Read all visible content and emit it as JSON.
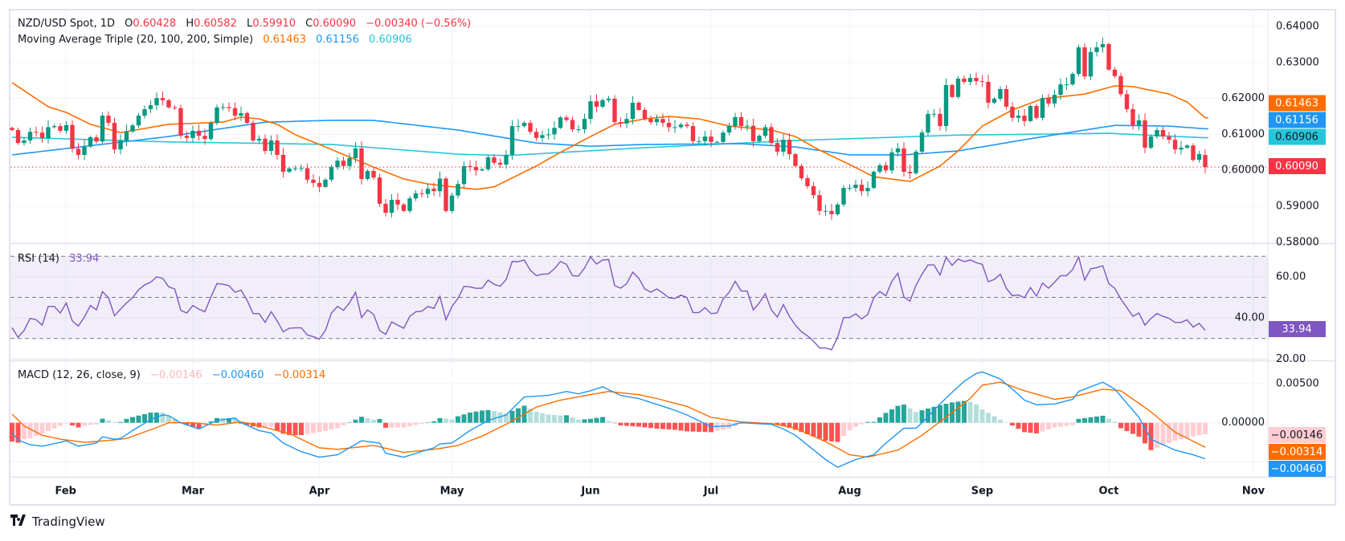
{
  "header": {
    "symbol": "NZD/USD Spot, 1D",
    "o_label": "O",
    "o": "0.60428",
    "h_label": "H",
    "h": "0.60582",
    "l_label": "L",
    "l": "0.59910",
    "c_label": "C",
    "c": "0.60090",
    "change": "−0.00340 (−0.56%)"
  },
  "ma_legend": {
    "title": "Moving Average Triple (20, 100, 200, Simple)",
    "v20": "0.61463",
    "v100": "0.61156",
    "v200": "0.60906"
  },
  "rsi_legend": {
    "title": "RSI (14)",
    "value": "33.94"
  },
  "macd_legend": {
    "title": "MACD (12, 26, close, 9)",
    "hist": "−0.00146",
    "macd": "−0.00460",
    "signal": "−0.00314"
  },
  "branding": {
    "name": "TradingView"
  },
  "colors": {
    "up": "#089981",
    "down": "#f23645",
    "sma20": "#ff6d00",
    "sma100": "#2196f3",
    "sma200": "#26c6da",
    "rsi": "#7e57c2",
    "macd": "#2196f3",
    "signal": "#ff6d00"
  },
  "chart_data": {
    "type": "candlestick",
    "title": "NZD/USD Spot, 1D",
    "last_bar": {
      "open": 0.60428,
      "high": 0.60582,
      "low": 0.5991,
      "close": 0.6009
    },
    "closes": [
      0.6112,
      0.6076,
      0.6083,
      0.6107,
      0.6105,
      0.609,
      0.612,
      0.6123,
      0.611,
      0.6126,
      0.606,
      0.6043,
      0.6066,
      0.6092,
      0.608,
      0.6152,
      0.6132,
      0.6058,
      0.6083,
      0.6108,
      0.6125,
      0.6152,
      0.617,
      0.6181,
      0.6201,
      0.6195,
      0.6175,
      0.6173,
      0.6096,
      0.609,
      0.611,
      0.6096,
      0.6087,
      0.6132,
      0.6175,
      0.6176,
      0.6173,
      0.6152,
      0.6159,
      0.6132,
      0.6083,
      0.6088,
      0.6054,
      0.6083,
      0.6043,
      0.5996,
      0.6005,
      0.6005,
      0.6006,
      0.5974,
      0.5965,
      0.5954,
      0.5974,
      0.6009,
      0.6027,
      0.6012,
      0.6034,
      0.6061,
      0.5976,
      0.5998,
      0.598,
      0.5907,
      0.5882,
      0.5918,
      0.5905,
      0.5887,
      0.5922,
      0.5936,
      0.5934,
      0.5949,
      0.5942,
      0.5977,
      0.5887,
      0.593,
      0.5962,
      0.6012,
      0.6009,
      0.6,
      0.6003,
      0.6036,
      0.6021,
      0.6016,
      0.6043,
      0.6123,
      0.6123,
      0.6132,
      0.6107,
      0.609,
      0.6098,
      0.61,
      0.6118,
      0.6147,
      0.614,
      0.6114,
      0.6114,
      0.6143,
      0.6192,
      0.6177,
      0.6195,
      0.6199,
      0.6134,
      0.613,
      0.6143,
      0.6188,
      0.6168,
      0.6143,
      0.6134,
      0.6143,
      0.6132,
      0.612,
      0.612,
      0.6127,
      0.6123,
      0.6081,
      0.6081,
      0.6094,
      0.6079,
      0.6079,
      0.6105,
      0.6123,
      0.6148,
      0.6123,
      0.6124,
      0.6081,
      0.6096,
      0.612,
      0.6076,
      0.6052,
      0.6085,
      0.6045,
      0.6012,
      0.5978,
      0.5956,
      0.5931,
      0.5887,
      0.5887,
      0.5878,
      0.5905,
      0.5951,
      0.5951,
      0.596,
      0.5942,
      0.5951,
      0.5996,
      0.6014,
      0.6,
      0.605,
      0.6061,
      0.5996,
      0.5992,
      0.6052,
      0.6105,
      0.6157,
      0.6157,
      0.6123,
      0.6237,
      0.6204,
      0.6255,
      0.6246,
      0.6257,
      0.6248,
      0.6246,
      0.6188,
      0.6199,
      0.6226,
      0.6177,
      0.6146,
      0.6152,
      0.6137,
      0.6179,
      0.6146,
      0.6201,
      0.6186,
      0.621,
      0.6239,
      0.6239,
      0.6268,
      0.6342,
      0.6261,
      0.6329,
      0.6342,
      0.6351,
      0.628,
      0.6262,
      0.6212,
      0.617,
      0.6125,
      0.6139,
      0.6063,
      0.6094,
      0.6112,
      0.6094,
      0.6085,
      0.6058,
      0.6063,
      0.6069,
      0.6029,
      0.6045,
      0.6009
    ],
    "sma20_keypoints": [
      [
        0,
        0.6244
      ],
      [
        6,
        0.6177
      ],
      [
        9,
        0.6161
      ],
      [
        13,
        0.6128
      ],
      [
        18,
        0.6105
      ],
      [
        26,
        0.6128
      ],
      [
        35,
        0.6134
      ],
      [
        38,
        0.6148
      ],
      [
        41,
        0.6143
      ],
      [
        44,
        0.6128
      ],
      [
        47,
        0.6099
      ],
      [
        51,
        0.6072
      ],
      [
        60,
        0.6009
      ],
      [
        65,
        0.5976
      ],
      [
        69,
        0.5962
      ],
      [
        77,
        0.5947
      ],
      [
        80,
        0.5954
      ],
      [
        87,
        0.6012
      ],
      [
        91,
        0.605
      ],
      [
        96,
        0.6094
      ],
      [
        100,
        0.6128
      ],
      [
        105,
        0.6143
      ],
      [
        109,
        0.615
      ],
      [
        114,
        0.6143
      ],
      [
        119,
        0.6123
      ],
      [
        126,
        0.6112
      ],
      [
        130,
        0.6094
      ],
      [
        134,
        0.6056
      ],
      [
        139,
        0.6016
      ],
      [
        143,
        0.5982
      ],
      [
        149,
        0.5969
      ],
      [
        154,
        0.6012
      ],
      [
        157,
        0.6054
      ],
      [
        161,
        0.6123
      ],
      [
        166,
        0.6168
      ],
      [
        171,
        0.6199
      ],
      [
        178,
        0.6212
      ],
      [
        183,
        0.6235
      ],
      [
        186,
        0.6233
      ],
      [
        192,
        0.6212
      ],
      [
        195,
        0.619
      ],
      [
        198,
        0.61463
      ]
    ],
    "sma100_keypoints": [
      [
        0,
        0.6043
      ],
      [
        26,
        0.6094
      ],
      [
        42,
        0.6134
      ],
      [
        53,
        0.6139
      ],
      [
        60,
        0.6139
      ],
      [
        74,
        0.6112
      ],
      [
        87,
        0.6076
      ],
      [
        96,
        0.6067
      ],
      [
        105,
        0.6072
      ],
      [
        121,
        0.6074
      ],
      [
        130,
        0.6065
      ],
      [
        139,
        0.6043
      ],
      [
        148,
        0.6043
      ],
      [
        157,
        0.6054
      ],
      [
        169,
        0.6088
      ],
      [
        178,
        0.6112
      ],
      [
        183,
        0.6125
      ],
      [
        192,
        0.6123
      ],
      [
        198,
        0.61156
      ]
    ],
    "sma200_keypoints": [
      [
        0,
        0.6092
      ],
      [
        26,
        0.6079
      ],
      [
        53,
        0.6072
      ],
      [
        74,
        0.6045
      ],
      [
        82,
        0.6041
      ],
      [
        105,
        0.6063
      ],
      [
        130,
        0.6083
      ],
      [
        157,
        0.6098
      ],
      [
        182,
        0.6103
      ],
      [
        198,
        0.60906
      ]
    ],
    "rsi": [
      35.2,
      30.6,
      33.9,
      39.8,
      39.1,
      36.5,
      45.6,
      45.6,
      42.4,
      47.3,
      38.5,
      36.1,
      40.4,
      46.0,
      43.9,
      52.8,
      49.9,
      41.1,
      44.3,
      47.3,
      49.9,
      53.7,
      56.1,
      57.4,
      60.0,
      59.3,
      55.1,
      54.1,
      43.7,
      42.4,
      46.0,
      44.3,
      43.0,
      50.2,
      56.7,
      56.4,
      55.7,
      52.5,
      53.5,
      48.6,
      42.1,
      42.1,
      37.8,
      43.0,
      38.5,
      33.3,
      35.0,
      35.2,
      35.2,
      31.7,
      30.9,
      29.7,
      33.9,
      42.4,
      45.6,
      43.7,
      47.3,
      52.5,
      40.2,
      43.9,
      41.7,
      33.9,
      32.0,
      38.1,
      36.5,
      35.0,
      40.8,
      43.0,
      43.3,
      45.6,
      44.7,
      50.5,
      39.1,
      45.6,
      49.5,
      55.4,
      55.1,
      54.4,
      54.5,
      58.4,
      56.4,
      55.4,
      58.7,
      67.5,
      67.4,
      68.2,
      63.2,
      60.6,
      61.3,
      61.4,
      63.9,
      67.5,
      66.1,
      60.6,
      60.4,
      64.3,
      69.7,
      66.2,
      68.2,
      68.4,
      55.7,
      54.5,
      56.7,
      62.3,
      59.3,
      54.1,
      52.5,
      54.1,
      52.1,
      49.8,
      49.5,
      51.1,
      49.9,
      42.6,
      42.6,
      45.0,
      42.1,
      42.4,
      49.2,
      52.5,
      57.8,
      53.1,
      53.1,
      43.9,
      47.3,
      51.8,
      43.9,
      40.4,
      46.5,
      40.8,
      36.5,
      33.3,
      31.3,
      28.7,
      25.4,
      25.4,
      24.5,
      30.6,
      40.2,
      40.2,
      42.0,
      39.5,
      41.7,
      49.9,
      52.8,
      50.8,
      57.8,
      61.7,
      50.2,
      48.2,
      55.8,
      61.3,
      65.8,
      65.8,
      60.9,
      69.5,
      65.6,
      68.7,
      67.4,
      68.2,
      66.9,
      66.1,
      57.6,
      58.7,
      61.3,
      54.4,
      50.8,
      51.2,
      49.8,
      54.8,
      50.6,
      57.0,
      54.5,
      57.4,
      60.6,
      60.6,
      63.5,
      69.7,
      58.4,
      63.9,
      64.5,
      65.4,
      56.7,
      54.4,
      49.2,
      45.0,
      40.8,
      42.4,
      36.5,
      39.8,
      42.1,
      40.8,
      39.8,
      37.8,
      37.8,
      39.1,
      35.6,
      37.4,
      33.94
    ],
    "macd_keypoints": [
      [
        0,
        -0.0013
      ],
      [
        1,
        -0.0022
      ],
      [
        3,
        -0.0028
      ],
      [
        5,
        -0.003
      ],
      [
        8,
        -0.0025
      ],
      [
        9,
        -0.0023
      ],
      [
        11,
        -0.003
      ],
      [
        14,
        -0.0026
      ],
      [
        15,
        -0.0018
      ],
      [
        17,
        -0.0021
      ],
      [
        18,
        -0.002
      ],
      [
        20,
        -0.001
      ],
      [
        23,
        0.0004
      ],
      [
        25,
        0.001
      ],
      [
        26,
        0.0009
      ],
      [
        28,
        0
      ],
      [
        31,
        -0.0008
      ],
      [
        34,
        0.0003
      ],
      [
        37,
        0.0006
      ],
      [
        38,
        0
      ],
      [
        41,
        -0.001
      ],
      [
        43,
        -0.0013
      ],
      [
        45,
        -0.0026
      ],
      [
        48,
        -0.0037
      ],
      [
        51,
        -0.0044
      ],
      [
        54,
        -0.0041
      ],
      [
        58,
        -0.0023
      ],
      [
        61,
        -0.0026
      ],
      [
        62,
        -0.0039
      ],
      [
        65,
        -0.0044
      ],
      [
        70,
        -0.0032
      ],
      [
        71,
        -0.0027
      ],
      [
        73,
        -0.0026
      ],
      [
        76,
        -0.001
      ],
      [
        79,
        0.0003
      ],
      [
        82,
        0.001
      ],
      [
        85,
        0.0033
      ],
      [
        89,
        0.0035
      ],
      [
        92,
        0.004
      ],
      [
        94,
        0.0037
      ],
      [
        96,
        0.0041
      ],
      [
        98,
        0.0046
      ],
      [
        101,
        0.0035
      ],
      [
        104,
        0.0031
      ],
      [
        106,
        0.0026
      ],
      [
        110,
        0.0016
      ],
      [
        112,
        0.001
      ],
      [
        116,
        -0.0005
      ],
      [
        119,
        -0.0004
      ],
      [
        121,
        0
      ],
      [
        126,
        -0.0002
      ],
      [
        128,
        -0.0008
      ],
      [
        130,
        -0.0016
      ],
      [
        135,
        -0.0047
      ],
      [
        137,
        -0.0057
      ],
      [
        140,
        -0.0047
      ],
      [
        143,
        -0.0041
      ],
      [
        145,
        -0.0026
      ],
      [
        148,
        -0.0007
      ],
      [
        150,
        -0.0007
      ],
      [
        151,
        0
      ],
      [
        154,
        0.0024
      ],
      [
        156,
        0.0039
      ],
      [
        158,
        0.0053
      ],
      [
        160,
        0.0063
      ],
      [
        161,
        0.0065
      ],
      [
        164,
        0.0056
      ],
      [
        166,
        0.0043
      ],
      [
        168,
        0.0029
      ],
      [
        170,
        0.0023
      ],
      [
        173,
        0.0024
      ],
      [
        176,
        0.003
      ],
      [
        177,
        0.004
      ],
      [
        181,
        0.0052
      ],
      [
        183,
        0.0043
      ],
      [
        187,
        0.0007
      ],
      [
        189,
        -0.0021
      ],
      [
        193,
        -0.0035
      ],
      [
        196,
        -0.0041
      ],
      [
        198,
        -0.0046
      ]
    ],
    "signal_keypoints": [
      [
        0,
        0.0011
      ],
      [
        2,
        -0.0004
      ],
      [
        5,
        -0.0016
      ],
      [
        8,
        -0.0021
      ],
      [
        12,
        -0.0025
      ],
      [
        17,
        -0.0022
      ],
      [
        19,
        -0.002
      ],
      [
        23,
        -0.0009
      ],
      [
        26,
        0
      ],
      [
        30,
        0
      ],
      [
        34,
        -0.0003
      ],
      [
        38,
        0.0001
      ],
      [
        40,
        -0.0002
      ],
      [
        46,
        -0.0014
      ],
      [
        51,
        -0.0032
      ],
      [
        54,
        -0.0034
      ],
      [
        60,
        -0.0029
      ],
      [
        65,
        -0.0038
      ],
      [
        71,
        -0.0033
      ],
      [
        74,
        -0.0029
      ],
      [
        78,
        -0.0017
      ],
      [
        82,
        -0.0002
      ],
      [
        87,
        0.002
      ],
      [
        91,
        0.0029
      ],
      [
        96,
        0.0036
      ],
      [
        99,
        0.004
      ],
      [
        104,
        0.0036
      ],
      [
        107,
        0.0031
      ],
      [
        112,
        0.0021
      ],
      [
        116,
        0.0007
      ],
      [
        121,
        0.0001
      ],
      [
        126,
        -0.0001
      ],
      [
        130,
        -0.0007
      ],
      [
        135,
        -0.0024
      ],
      [
        139,
        -0.0041
      ],
      [
        142,
        -0.0044
      ],
      [
        147,
        -0.0035
      ],
      [
        151,
        -0.0016
      ],
      [
        156,
        0.0013
      ],
      [
        159,
        0.0031
      ],
      [
        161,
        0.0048
      ],
      [
        164,
        0.0052
      ],
      [
        168,
        0.0041
      ],
      [
        173,
        0.003
      ],
      [
        176,
        0.0033
      ],
      [
        181,
        0.0043
      ],
      [
        184,
        0.0041
      ],
      [
        189,
        0.0014
      ],
      [
        193,
        -0.0012
      ],
      [
        198,
        -0.00314
      ]
    ],
    "price_axis": {
      "ticks": [
        "0.64000",
        "0.63000",
        "0.62000",
        "0.61000",
        "0.60000",
        "0.59000",
        "0.58000"
      ]
    },
    "rsi_axis": {
      "ticks": [
        "60.00",
        "40.00",
        "20.00"
      ],
      "bands": [
        70,
        50,
        30
      ]
    },
    "macd_axis": {
      "ticks": [
        "0.00500",
        "0.00000"
      ]
    },
    "time_axis": [
      {
        "label": "Feb",
        "bar": 8.9
      },
      {
        "label": "Mar",
        "bar": 30
      },
      {
        "label": "Apr",
        "bar": 51
      },
      {
        "label": "May",
        "bar": 73
      },
      {
        "label": "Jun",
        "bar": 96
      },
      {
        "label": "Jul",
        "bar": 116
      },
      {
        "label": "Aug",
        "bar": 139
      },
      {
        "label": "Sep",
        "bar": 161
      },
      {
        "label": "Oct",
        "bar": 182
      },
      {
        "label": "Nov",
        "bar": 206
      }
    ],
    "badges": {
      "sma20": "0.61463",
      "sma100": "0.61156",
      "sma200": "0.60906",
      "last": "0.60090",
      "rsi": "33.94",
      "hist": "−0.00146",
      "signal": "−0.00314",
      "macd": "−0.00460"
    }
  }
}
